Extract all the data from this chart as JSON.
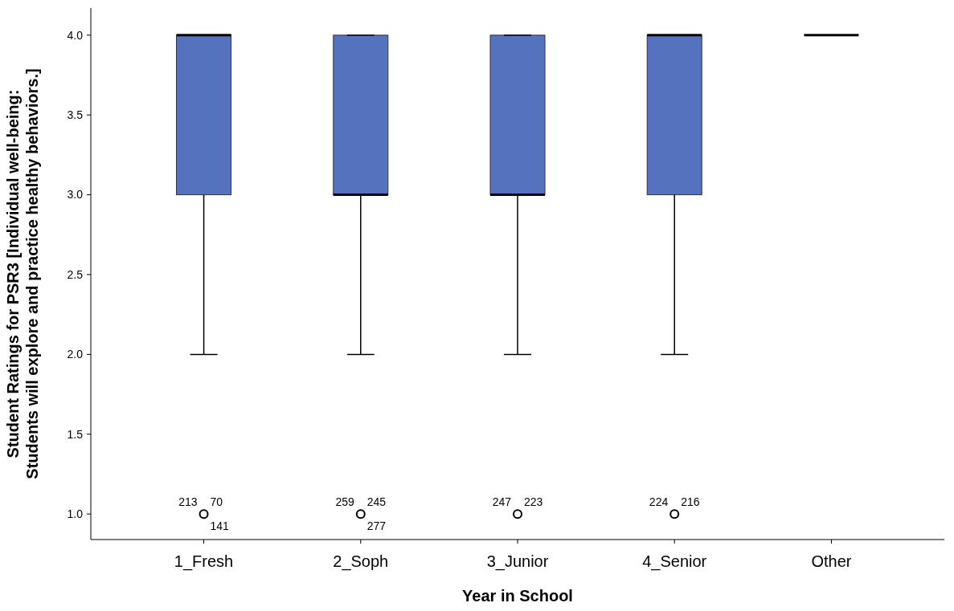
{
  "chart_data": {
    "type": "box",
    "xlabel": "Year in School",
    "ylabel": "Student Ratings for PSR3 [Individual well-being:\nStudents will explore and practice healthy behaviors.]",
    "categories": [
      "1_Fresh",
      "2_Soph",
      "3_Junior",
      "4_Senior",
      "Other"
    ],
    "colors": [
      "#5572be",
      "#5572be",
      "#5572be",
      "#5572be",
      "#000000"
    ],
    "boxes": [
      {
        "low": 2,
        "q1": 3,
        "median": 4,
        "q3": 4,
        "high": 4
      },
      {
        "low": 2,
        "q1": 3,
        "median": 3,
        "q3": 4,
        "high": 4
      },
      {
        "low": 2,
        "q1": 3,
        "median": 3,
        "q3": 4,
        "high": 4
      },
      {
        "low": 2,
        "q1": 3,
        "median": 4,
        "q3": 4,
        "high": 4
      },
      {
        "low": 4,
        "q1": 4,
        "median": 4,
        "q3": 4,
        "high": 4
      }
    ],
    "series": [
      {
        "type": "scatter",
        "x": [
          "1_Fresh",
          "2_Soph",
          "3_Junior",
          "4_Senior"
        ],
        "values": [
          1,
          1,
          1,
          1
        ],
        "color": "#000000",
        "marker": "circle"
      }
    ],
    "ylim": [
      0.84,
      4.17
    ],
    "yticks": [
      {
        "value": 1,
        "label": "1.0"
      },
      {
        "value": 1.5,
        "label": "1.5"
      },
      {
        "value": 2,
        "label": "2.0"
      },
      {
        "value": 2.5,
        "label": "2.5"
      },
      {
        "value": 3,
        "label": "3.0"
      },
      {
        "value": 3.5,
        "label": "3.5"
      },
      {
        "value": 4,
        "label": "4.0"
      }
    ],
    "annotations": [
      {
        "text": "213",
        "x": "1_Fresh",
        "y": 1
      },
      {
        "text": "70",
        "x": "1_Fresh",
        "y": 1
      },
      {
        "text": "141",
        "x": "1_Fresh",
        "y": 1
      },
      {
        "text": "259",
        "x": "2_Soph",
        "y": 1
      },
      {
        "text": "245",
        "x": "2_Soph",
        "y": 1
      },
      {
        "text": "277",
        "x": "2_Soph",
        "y": 1
      },
      {
        "text": "247",
        "x": "3_Junior",
        "y": 1
      },
      {
        "text": "223",
        "x": "3_Junior",
        "y": 1
      },
      {
        "text": "224",
        "x": "4_Senior",
        "y": 1
      },
      {
        "text": "216",
        "x": "4_Senior",
        "y": 1
      }
    ]
  }
}
